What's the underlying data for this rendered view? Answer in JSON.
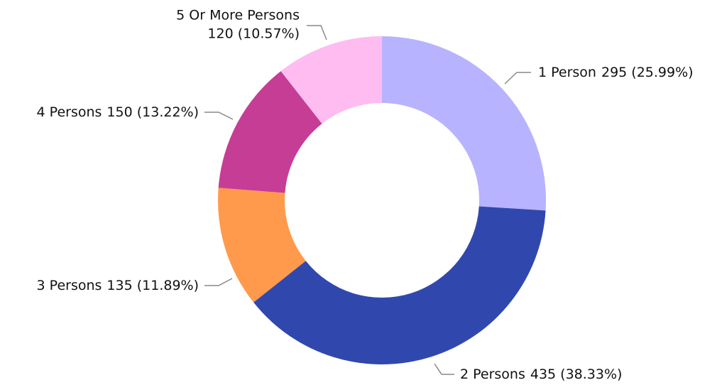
{
  "chart_data": {
    "type": "donut",
    "categories": [
      "1 Person",
      "2 Persons",
      "3 Persons",
      "4 Persons",
      "5 Or More Persons"
    ],
    "values": [
      295,
      435,
      135,
      150,
      120
    ],
    "value_labels": [
      "295 (25.99%)",
      "435 (38.33%)",
      "135 (11.89%)",
      "150 (13.22%)",
      "120 (10.57%)"
    ],
    "colors": [
      "#b8b3ff",
      "#3048ad",
      "#ff9a4d",
      "#c63d96",
      "#ffbcf0"
    ]
  }
}
